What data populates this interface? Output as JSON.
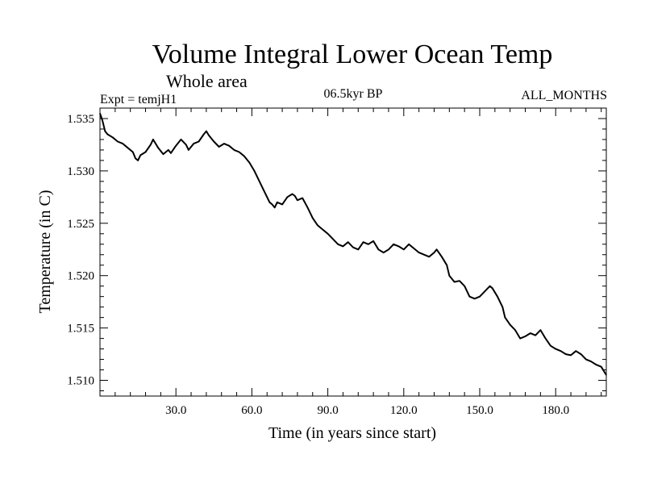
{
  "chart_data": {
    "type": "line",
    "title": "Volume Integral Lower Ocean Temp",
    "subtitle": "Whole area",
    "experiment_label": "Expt = temjH1",
    "period_label": "06.5kyr BP",
    "months_label": "ALL_MONTHS",
    "xlabel": "Time (in years since start)",
    "ylabel": "Temperature (in C)",
    "xlim": [
      0,
      200
    ],
    "ylim": [
      1.5085,
      1.536
    ],
    "grid": false,
    "x_ticks": [
      30,
      60,
      90,
      120,
      150,
      180
    ],
    "x_tick_labels": [
      "30.0",
      "60.0",
      "90.0",
      "120.0",
      "150.0",
      "180.0"
    ],
    "y_ticks": [
      1.51,
      1.515,
      1.52,
      1.525,
      1.53,
      1.535
    ],
    "y_tick_labels": [
      "1.510",
      "1.515",
      "1.520",
      "1.525",
      "1.530",
      "1.535"
    ],
    "series": [
      {
        "name": "temjH1",
        "color": "#000000",
        "x": [
          0,
          1,
          2,
          3,
          5,
          7,
          9,
          11,
          13,
          14,
          15,
          16,
          18,
          20,
          21,
          23,
          25,
          27,
          28,
          30,
          32,
          34,
          35,
          37,
          39,
          41,
          42,
          43,
          45,
          47,
          49,
          51,
          53,
          55,
          57,
          59,
          61,
          63,
          65,
          67,
          68,
          69,
          70,
          72,
          74,
          76,
          77,
          78,
          80,
          82,
          84,
          86,
          88,
          90,
          92,
          94,
          96,
          98,
          100,
          102,
          104,
          106,
          108,
          110,
          112,
          114,
          116,
          118,
          120,
          122,
          124,
          126,
          128,
          130,
          132,
          133,
          135,
          137,
          138,
          140,
          142,
          144,
          146,
          148,
          150,
          152,
          154,
          155,
          157,
          159,
          160,
          162,
          164,
          166,
          168,
          170,
          172,
          174,
          176,
          178,
          180,
          182,
          184,
          186,
          188,
          190,
          192,
          194,
          196,
          198,
          200
        ],
        "values": [
          1.5355,
          1.5348,
          1.5338,
          1.5335,
          1.5332,
          1.5328,
          1.5326,
          1.5322,
          1.5318,
          1.5312,
          1.531,
          1.5315,
          1.5318,
          1.5325,
          1.533,
          1.5322,
          1.5316,
          1.532,
          1.5317,
          1.5324,
          1.533,
          1.5325,
          1.532,
          1.5326,
          1.5328,
          1.5335,
          1.5338,
          1.5334,
          1.5328,
          1.5323,
          1.5326,
          1.5324,
          1.532,
          1.5318,
          1.5314,
          1.5308,
          1.53,
          1.529,
          1.528,
          1.527,
          1.5268,
          1.5265,
          1.527,
          1.5268,
          1.5275,
          1.5278,
          1.5276,
          1.5272,
          1.5274,
          1.5265,
          1.5255,
          1.5248,
          1.5244,
          1.524,
          1.5235,
          1.523,
          1.5228,
          1.5232,
          1.5227,
          1.5225,
          1.5232,
          1.523,
          1.5233,
          1.5225,
          1.5222,
          1.5225,
          1.523,
          1.5228,
          1.5225,
          1.523,
          1.5226,
          1.5222,
          1.522,
          1.5218,
          1.5222,
          1.5225,
          1.5218,
          1.521,
          1.52,
          1.5194,
          1.5195,
          1.519,
          1.518,
          1.5178,
          1.518,
          1.5185,
          1.519,
          1.5188,
          1.518,
          1.517,
          1.516,
          1.5153,
          1.5148,
          1.514,
          1.5142,
          1.5145,
          1.5143,
          1.5148,
          1.514,
          1.5133,
          1.513,
          1.5128,
          1.5125,
          1.5124,
          1.5128,
          1.5125,
          1.512,
          1.5118,
          1.5115,
          1.5113,
          1.5105
        ]
      }
    ]
  }
}
